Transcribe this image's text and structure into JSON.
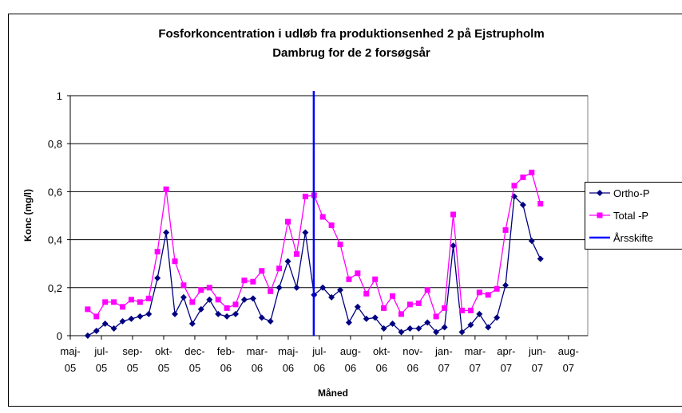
{
  "chart_data": {
    "type": "line",
    "title": [
      "Fosforkoncentration i udløb fra produktionsenhed 2 på Ejstrupholm",
      "Dambrug for de 2 forsøgsår"
    ],
    "xlabel": "Måned",
    "ylabel": "Konc (mg/l)",
    "x": [
      0.56,
      0.84,
      1.12,
      1.4,
      1.68,
      1.96,
      2.24,
      2.52,
      2.8,
      3.08,
      3.36,
      3.64,
      3.92,
      4.2,
      4.47,
      4.75,
      5.03,
      5.31,
      5.59,
      5.87,
      6.15,
      6.43,
      6.71,
      6.99,
      7.27,
      7.55,
      7.83,
      8.11,
      8.39,
      8.67,
      8.95,
      9.23,
      9.51,
      9.79,
      10.07,
      10.35,
      10.63,
      10.91,
      11.19,
      11.47,
      11.75,
      12.02,
      12.3,
      12.58,
      12.86,
      13.14,
      13.42,
      13.7,
      13.98,
      14.26,
      14.54,
      14.82,
      15.1
    ],
    "series": [
      {
        "name": "Ortho-P",
        "color": "#000080",
        "marker": "diamond",
        "values": [
          0.0,
          0.02,
          0.05,
          0.03,
          0.06,
          0.07,
          0.08,
          0.09,
          0.24,
          0.43,
          0.09,
          0.16,
          0.05,
          0.11,
          0.15,
          0.09,
          0.08,
          0.09,
          0.15,
          0.155,
          0.075,
          0.06,
          0.2,
          0.31,
          0.2,
          0.43,
          0.17,
          0.2,
          0.16,
          0.19,
          0.055,
          0.12,
          0.07,
          0.075,
          0.03,
          0.05,
          0.015,
          0.03,
          0.03,
          0.055,
          0.015,
          0.035,
          0.375,
          0.015,
          0.045,
          0.09,
          0.035,
          0.075,
          0.21,
          0.58,
          0.545,
          0.395,
          0.32
        ]
      },
      {
        "name": "Total -P",
        "color": "#ff00ff",
        "marker": "square",
        "values": [
          0.11,
          0.08,
          0.14,
          0.14,
          0.12,
          0.15,
          0.14,
          0.155,
          0.35,
          0.61,
          0.31,
          0.21,
          0.14,
          0.19,
          0.2,
          0.15,
          0.115,
          0.13,
          0.23,
          0.225,
          0.27,
          0.185,
          0.28,
          0.475,
          0.34,
          0.58,
          0.585,
          0.495,
          0.46,
          0.38,
          0.235,
          0.26,
          0.175,
          0.235,
          0.115,
          0.165,
          0.09,
          0.13,
          0.135,
          0.19,
          0.08,
          0.115,
          0.505,
          0.105,
          0.105,
          0.18,
          0.17,
          0.195,
          0.44,
          0.625,
          0.66,
          0.68,
          0.55
        ]
      },
      {
        "name": "Årsskifte",
        "color": "#0000ff",
        "marker": "none",
        "x": [
          7.82,
          7.82
        ],
        "values": [
          0,
          1.02
        ]
      }
    ],
    "xlim": [
      0,
      16.62
    ],
    "xticks": [
      {
        "value": 0,
        "label": "maj-05"
      },
      {
        "value": 1,
        "label": "jul-05"
      },
      {
        "value": 2,
        "label": "sep-05"
      },
      {
        "value": 3,
        "label": "okt-05"
      },
      {
        "value": 4,
        "label": "dec-05"
      },
      {
        "value": 5,
        "label": "feb-06"
      },
      {
        "value": 6,
        "label": "mar-06"
      },
      {
        "value": 7,
        "label": "maj-06"
      },
      {
        "value": 8,
        "label": "jul-06"
      },
      {
        "value": 9,
        "label": "aug-06"
      },
      {
        "value": 10,
        "label": "okt-06"
      },
      {
        "value": 11,
        "label": "nov-06"
      },
      {
        "value": 12,
        "label": "jan-07"
      },
      {
        "value": 13,
        "label": "mar-07"
      },
      {
        "value": 14,
        "label": "apr-07"
      },
      {
        "value": 15,
        "label": "jun-07"
      },
      {
        "value": 16,
        "label": "aug-07"
      }
    ],
    "ylim": [
      0,
      1
    ],
    "yticks": [
      0,
      {
        "value": 0.2,
        "label": "0,2"
      },
      {
        "value": 0.4,
        "label": "0,4"
      },
      {
        "value": 0.6,
        "label": "0,6"
      },
      {
        "value": 0.8,
        "label": "0,8"
      },
      1
    ],
    "grid": true,
    "legend": "right"
  }
}
